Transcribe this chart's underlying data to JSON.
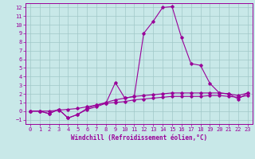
{
  "xlabel": "Windchill (Refroidissement éolien,°C)",
  "background_color": "#c8e8e8",
  "grid_color": "#a0c8c8",
  "line_color": "#990099",
  "xlim": [
    -0.5,
    23.5
  ],
  "ylim": [
    -1.5,
    12.5
  ],
  "xticks": [
    0,
    1,
    2,
    3,
    4,
    5,
    6,
    7,
    8,
    9,
    10,
    11,
    12,
    13,
    14,
    15,
    16,
    17,
    18,
    19,
    20,
    21,
    22,
    23
  ],
  "yticks": [
    -1,
    0,
    1,
    2,
    3,
    4,
    5,
    6,
    7,
    8,
    9,
    10,
    11,
    12
  ],
  "series1": [
    [
      0,
      0.0
    ],
    [
      1,
      0.0
    ],
    [
      2,
      -0.3
    ],
    [
      3,
      0.2
    ],
    [
      4,
      -0.8
    ],
    [
      5,
      -0.4
    ],
    [
      6,
      0.3
    ],
    [
      7,
      0.7
    ],
    [
      8,
      1.0
    ],
    [
      9,
      1.3
    ],
    [
      10,
      1.5
    ],
    [
      11,
      1.7
    ],
    [
      12,
      1.8
    ],
    [
      13,
      1.9
    ],
    [
      14,
      2.0
    ],
    [
      15,
      2.1
    ],
    [
      16,
      2.1
    ],
    [
      17,
      2.1
    ],
    [
      18,
      2.1
    ],
    [
      19,
      2.1
    ],
    [
      20,
      2.1
    ],
    [
      21,
      2.0
    ],
    [
      22,
      1.8
    ],
    [
      23,
      2.1
    ]
  ],
  "series2": [
    [
      0,
      0.0
    ],
    [
      1,
      0.0
    ],
    [
      2,
      0.0
    ],
    [
      3,
      0.1
    ],
    [
      4,
      0.2
    ],
    [
      5,
      0.3
    ],
    [
      6,
      0.5
    ],
    [
      7,
      0.7
    ],
    [
      8,
      0.9
    ],
    [
      9,
      1.0
    ],
    [
      10,
      1.1
    ],
    [
      11,
      1.3
    ],
    [
      12,
      1.4
    ],
    [
      13,
      1.5
    ],
    [
      14,
      1.6
    ],
    [
      15,
      1.7
    ],
    [
      16,
      1.7
    ],
    [
      17,
      1.7
    ],
    [
      18,
      1.7
    ],
    [
      19,
      1.8
    ],
    [
      20,
      1.8
    ],
    [
      21,
      1.7
    ],
    [
      22,
      1.6
    ],
    [
      23,
      1.8
    ]
  ],
  "series3": [
    [
      0,
      0.0
    ],
    [
      1,
      0.0
    ],
    [
      2,
      -0.3
    ],
    [
      3,
      0.2
    ],
    [
      4,
      -0.8
    ],
    [
      5,
      -0.4
    ],
    [
      6,
      0.2
    ],
    [
      7,
      0.5
    ],
    [
      8,
      0.9
    ],
    [
      9,
      3.3
    ],
    [
      10,
      1.5
    ],
    [
      11,
      1.7
    ],
    [
      12,
      9.0
    ],
    [
      13,
      10.4
    ],
    [
      14,
      12.0
    ],
    [
      15,
      12.1
    ],
    [
      16,
      8.5
    ],
    [
      17,
      5.5
    ],
    [
      18,
      5.3
    ],
    [
      19,
      3.2
    ],
    [
      20,
      2.1
    ],
    [
      21,
      2.0
    ],
    [
      22,
      1.4
    ],
    [
      23,
      2.1
    ]
  ]
}
